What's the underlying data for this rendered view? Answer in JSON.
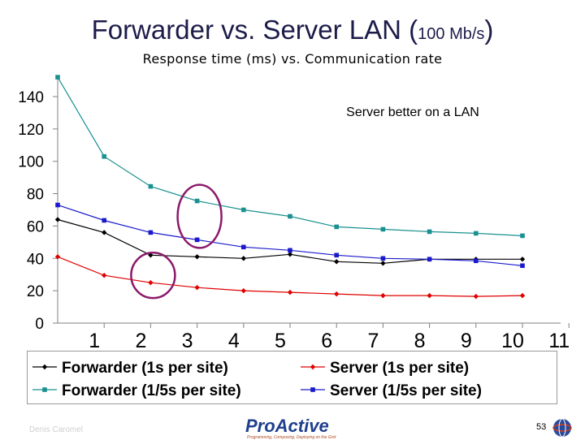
{
  "slide": {
    "title_main": "Forwarder vs. Server  LAN (",
    "title_small": "100 Mb/s",
    "title_close": ")",
    "subtitle": "Response time (ms) vs. Communication rate",
    "author": "Denis Caromel",
    "logo": "ProActive",
    "logo_tagline": "Programming, Composing, Deploying on the Grid",
    "page_number": "53"
  },
  "chart_data": {
    "type": "line",
    "title": "Response time (ms) vs. Communication rate",
    "annotation": "Server better on a LAN",
    "x_ticks": [
      "1",
      "2",
      "3",
      "4",
      "5",
      "6",
      "7",
      "8",
      "9",
      "10",
      "11"
    ],
    "y_ticks": [
      "0",
      "20",
      "40",
      "60",
      "80",
      "100",
      "120",
      "140"
    ],
    "ylim": [
      0,
      150
    ],
    "xlim": [
      0,
      11
    ],
    "series": [
      {
        "name": "Forwarder (1s per site)",
        "color": "#000000",
        "marker": "diamond",
        "x": [
          0,
          1,
          2,
          3,
          4,
          5,
          6,
          7,
          8,
          9,
          10
        ],
        "values": [
          64,
          56,
          42,
          41,
          40,
          42.5,
          38,
          37,
          39.5,
          39.5,
          39.5
        ]
      },
      {
        "name": "Server (1s per site)",
        "color": "#e00000",
        "marker": "diamond",
        "x": [
          0,
          1,
          2,
          3,
          4,
          5,
          6,
          7,
          8,
          9,
          10
        ],
        "values": [
          41,
          29.5,
          25,
          22,
          20,
          19,
          18,
          17,
          17,
          16.5,
          17
        ]
      },
      {
        "name": "Forwarder (1/5s per site)",
        "color": "#1a9090",
        "marker": "square",
        "x": [
          0,
          1,
          2,
          3,
          4,
          5,
          6,
          7,
          8,
          9,
          10
        ],
        "values": [
          152,
          103,
          84.5,
          75.5,
          70,
          66,
          59.5,
          58,
          56.5,
          55.5,
          54
        ]
      },
      {
        "name": "Server (1/5s per site)",
        "color": "#1a1acc",
        "marker": "square",
        "x": [
          0,
          1,
          2,
          3,
          4,
          5,
          6,
          7,
          8,
          9,
          10
        ],
        "values": [
          73,
          63.5,
          56,
          51.5,
          47,
          45,
          42,
          40,
          39.5,
          38.5,
          35.5
        ]
      }
    ],
    "highlights": [
      {
        "name": "ellipse-x2",
        "x": 2,
        "y_min": 17,
        "y_max": 42,
        "color": "#8b1a6b"
      },
      {
        "name": "ellipse-x3",
        "x": 3,
        "y_min": 48,
        "y_max": 84,
        "color": "#8b1a6b"
      }
    ],
    "legend_order": [
      0,
      1,
      2,
      3
    ],
    "legend_placement": "bottom"
  }
}
